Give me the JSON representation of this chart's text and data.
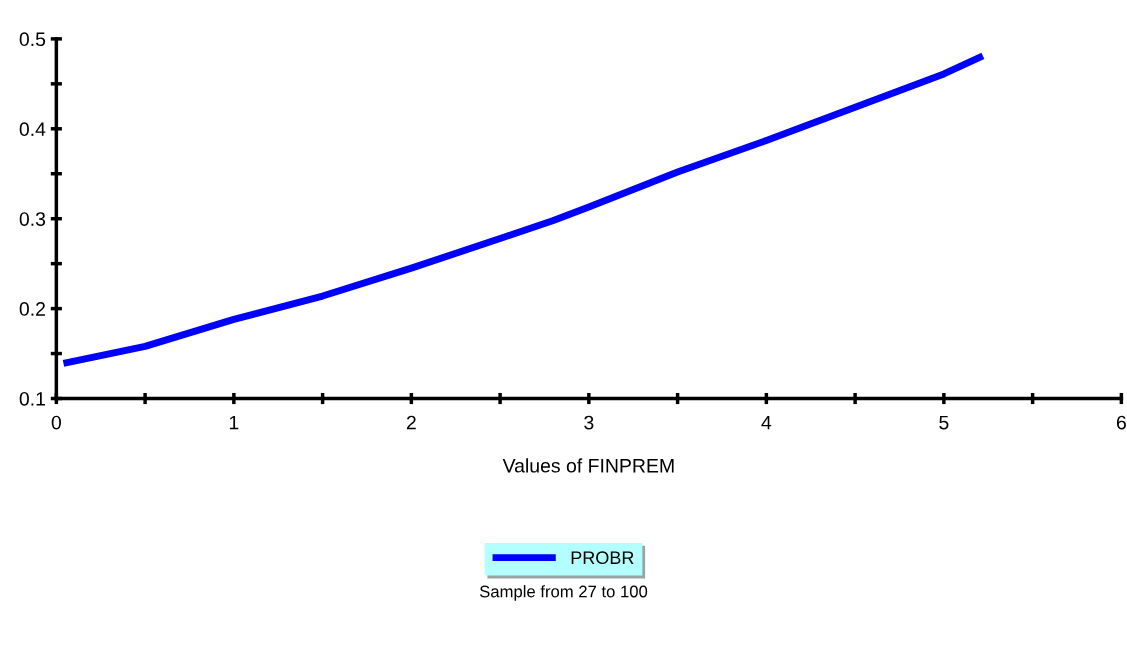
{
  "chart_data": {
    "type": "line",
    "xlabel": "Values of FINPREM",
    "x": [
      0.04,
      0.5,
      1,
      1.5,
      2,
      2.5,
      2.8,
      3,
      3.5,
      4,
      4.5,
      5,
      5.22
    ],
    "series": [
      {
        "name": "PROBR",
        "color": "#0000ff",
        "values": [
          0.139,
          0.158,
          0.188,
          0.214,
          0.245,
          0.278,
          0.298,
          0.313,
          0.352,
          0.387,
          0.424,
          0.461,
          0.481
        ]
      }
    ],
    "xlim": [
      0,
      6
    ],
    "xticks": [
      0,
      {
        "value": 0.5,
        "label": null
      },
      1,
      {
        "value": 1.5,
        "label": null
      },
      2,
      {
        "value": 2.5,
        "label": null
      },
      3,
      {
        "value": 3.5,
        "label": null
      },
      4,
      {
        "value": 4.5,
        "label": null
      },
      5,
      {
        "value": 5.5,
        "label": null
      },
      6
    ],
    "ylim": [
      0.1,
      0.5
    ],
    "yticks": [
      0.1,
      {
        "value": 0.15,
        "label": null
      },
      0.2,
      {
        "value": 0.25,
        "label": null
      },
      0.3,
      {
        "value": 0.35,
        "label": null
      },
      0.4,
      {
        "value": 0.45,
        "label": null
      },
      0.5
    ],
    "grid": false,
    "legend": "bottom",
    "marker": "none",
    "line_style": "solid",
    "annotations": [
      "Sample from 27 to 100"
    ]
  }
}
